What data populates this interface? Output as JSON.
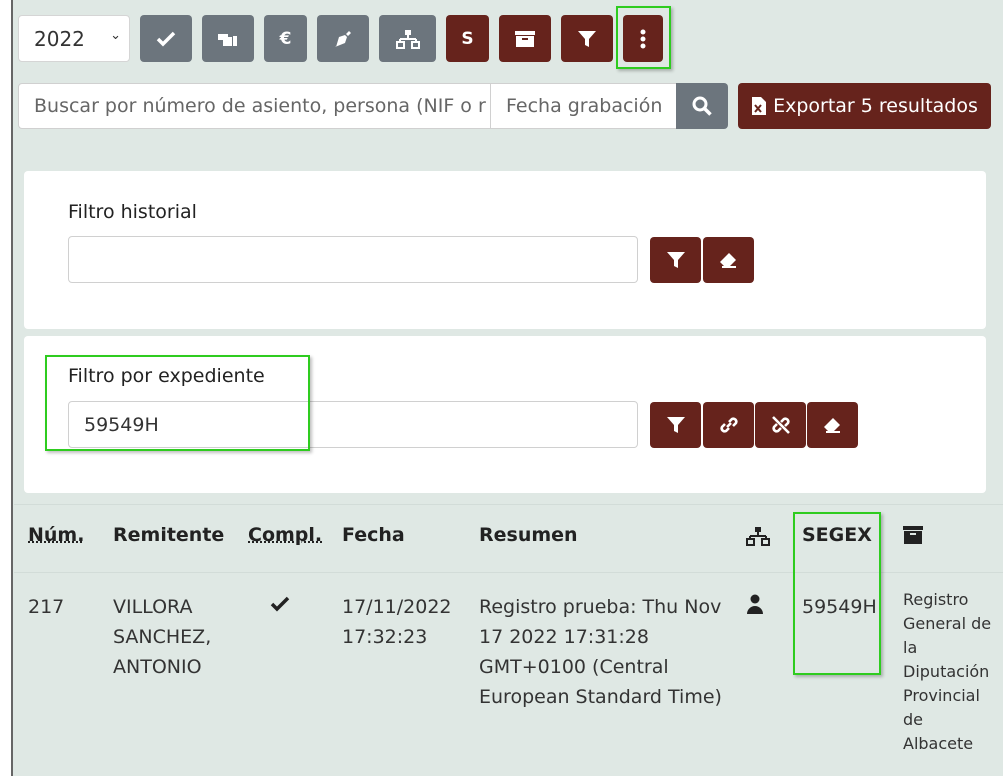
{
  "toolbar": {
    "year": "2022",
    "buttons": [
      {
        "name": "check-button",
        "icon": "check-icon",
        "label": ""
      },
      {
        "name": "hand-pointer-button",
        "icon": "hand-pointer-icon",
        "label": ""
      },
      {
        "name": "euro-button",
        "icon": "euro-icon",
        "label": "€"
      },
      {
        "name": "pen-nib-button",
        "icon": "pen-nib-icon",
        "label": ""
      },
      {
        "name": "sitemap-button",
        "icon": "sitemap-icon",
        "label": ""
      },
      {
        "name": "segex-button",
        "icon": "s-icon",
        "label": "S"
      },
      {
        "name": "archive-button",
        "icon": "archive-icon",
        "label": ""
      },
      {
        "name": "filter-button",
        "icon": "filter-icon",
        "label": ""
      },
      {
        "name": "more-button",
        "icon": "ellipsis-vertical-icon",
        "label": ""
      }
    ]
  },
  "search": {
    "placeholder": "Buscar por número de asiento, persona (NIF o r",
    "date_placeholder": "Fecha grabación",
    "export_label": "Exportar 5 resultados"
  },
  "filter_history": {
    "label": "Filtro historial",
    "value": ""
  },
  "filter_expediente": {
    "label": "Filtro por expediente",
    "value": "59549H"
  },
  "table": {
    "headers": {
      "num": "Núm.",
      "remitente": "Remitente",
      "compl": "Compl.",
      "fecha": "Fecha",
      "resumen": "Resumen",
      "segex": "SEGEX"
    },
    "rows": [
      {
        "num": "217",
        "remitente": "VILLORA SANCHEZ, ANTONIO",
        "fecha": "17/11/2022 17:32:23",
        "resumen": "Registro prueba: Thu Nov 17 2022 17:31:28 GMT+0100 (Central European Standard Time)",
        "segex": "59549H",
        "archivo": "Registro General de la Diputación Provincial de Albacete"
      }
    ]
  },
  "colors": {
    "primary": "#66231c",
    "secondary": "#6c757d",
    "highlight": "#2ecc1f",
    "background": "#dfe8e4"
  }
}
